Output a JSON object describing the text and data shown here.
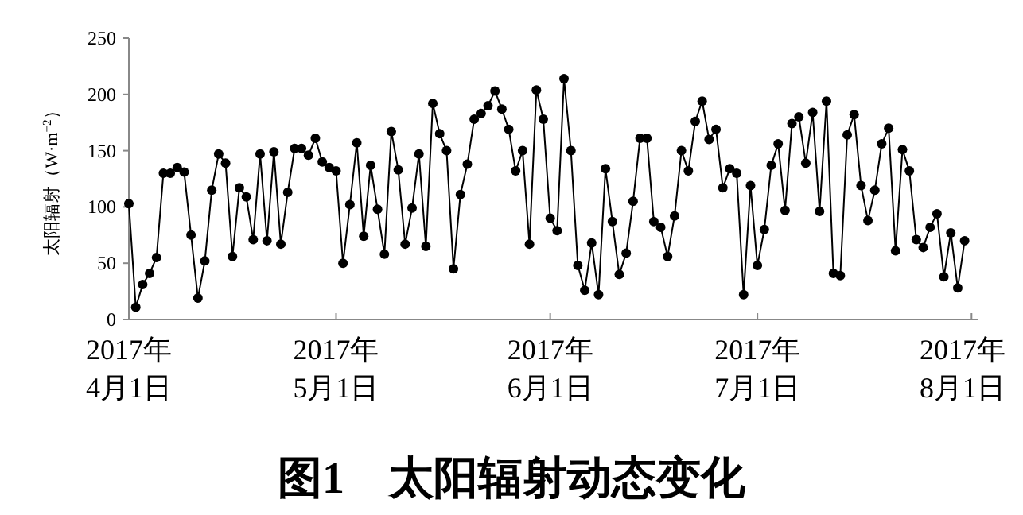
{
  "chart_data": {
    "type": "line",
    "title": "图1　太阳辐射动态变化",
    "ylabel": "太阳辐射（W·m$^{−2}$）",
    "x": [
      "2017-04-01",
      "2017-04-02",
      "2017-04-03",
      "2017-04-04",
      "2017-04-05",
      "2017-04-06",
      "2017-04-07",
      "2017-04-08",
      "2017-04-09",
      "2017-04-10",
      "2017-04-11",
      "2017-04-12",
      "2017-04-13",
      "2017-04-14",
      "2017-04-15",
      "2017-04-16",
      "2017-04-17",
      "2017-04-18",
      "2017-04-19",
      "2017-04-20",
      "2017-04-21",
      "2017-04-22",
      "2017-04-23",
      "2017-04-24",
      "2017-04-25",
      "2017-04-26",
      "2017-04-27",
      "2017-04-28",
      "2017-04-29",
      "2017-04-30",
      "2017-05-01",
      "2017-05-02",
      "2017-05-03",
      "2017-05-04",
      "2017-05-05",
      "2017-05-06",
      "2017-05-07",
      "2017-05-08",
      "2017-05-09",
      "2017-05-10",
      "2017-05-11",
      "2017-05-12",
      "2017-05-13",
      "2017-05-14",
      "2017-05-15",
      "2017-05-16",
      "2017-05-17",
      "2017-05-18",
      "2017-05-19",
      "2017-05-20",
      "2017-05-21",
      "2017-05-22",
      "2017-05-23",
      "2017-05-24",
      "2017-05-25",
      "2017-05-26",
      "2017-05-27",
      "2017-05-28",
      "2017-05-29",
      "2017-05-30",
      "2017-05-31",
      "2017-06-01",
      "2017-06-02",
      "2017-06-03",
      "2017-06-04",
      "2017-06-05",
      "2017-06-06",
      "2017-06-07",
      "2017-06-08",
      "2017-06-09",
      "2017-06-10",
      "2017-06-11",
      "2017-06-12",
      "2017-06-13",
      "2017-06-14",
      "2017-06-15",
      "2017-06-16",
      "2017-06-17",
      "2017-06-18",
      "2017-06-19",
      "2017-06-20",
      "2017-06-21",
      "2017-06-22",
      "2017-06-23",
      "2017-06-24",
      "2017-06-25",
      "2017-06-26",
      "2017-06-27",
      "2017-06-28",
      "2017-06-29",
      "2017-06-30",
      "2017-07-01",
      "2017-07-02",
      "2017-07-03",
      "2017-07-04",
      "2017-07-05",
      "2017-07-06",
      "2017-07-07",
      "2017-07-08",
      "2017-07-09",
      "2017-07-10",
      "2017-07-11",
      "2017-07-12",
      "2017-07-13",
      "2017-07-14",
      "2017-07-15",
      "2017-07-16",
      "2017-07-17",
      "2017-07-18",
      "2017-07-19",
      "2017-07-20",
      "2017-07-21",
      "2017-07-22",
      "2017-07-23",
      "2017-07-24",
      "2017-07-25",
      "2017-07-26",
      "2017-07-27",
      "2017-07-28",
      "2017-07-29",
      "2017-07-30",
      "2017-07-31"
    ],
    "values": [
      103,
      11,
      31,
      41,
      55,
      130,
      130,
      135,
      131,
      75,
      19,
      52,
      115,
      147,
      139,
      56,
      117,
      109,
      71,
      147,
      70,
      149,
      67,
      113,
      152,
      152,
      146,
      161,
      140,
      135,
      132,
      50,
      102,
      157,
      74,
      137,
      98,
      58,
      167,
      133,
      67,
      99,
      147,
      65,
      192,
      165,
      150,
      45,
      111,
      138,
      178,
      183,
      190,
      203,
      187,
      169,
      132,
      150,
      67,
      204,
      178,
      90,
      79,
      214,
      150,
      48,
      26,
      68,
      22,
      134,
      87,
      40,
      59,
      105,
      161,
      161,
      87,
      82,
      56,
      92,
      150,
      132,
      176,
      194,
      160,
      169,
      117,
      134,
      130,
      22,
      119,
      48,
      80,
      137,
      156,
      97,
      174,
      180,
      139,
      184,
      96,
      194,
      41,
      39,
      164,
      182,
      119,
      88,
      115,
      156,
      170,
      61,
      151,
      132,
      71,
      64,
      82,
      94,
      38,
      77,
      28,
      70
    ],
    "color": "#000000",
    "marker": "circle",
    "line_style": "solid",
    "grid": false,
    "xlim": [
      "2017-04-01",
      "2017-08-02"
    ],
    "xticks": [
      {
        "value": "2017-04-01",
        "label": "2017年\n4月1日"
      },
      {
        "value": "2017-05-01",
        "label": "2017年\n5月1日"
      },
      {
        "value": "2017-06-01",
        "label": "2017年\n6月1日"
      },
      {
        "value": "2017-07-01",
        "label": "2017年\n7月1日"
      },
      {
        "value": "2017-08-01",
        "label": "2017年\n8月1日"
      }
    ],
    "ylim": [
      0,
      250
    ],
    "yticks": [
      0,
      50,
      100,
      150,
      200,
      250
    ]
  }
}
